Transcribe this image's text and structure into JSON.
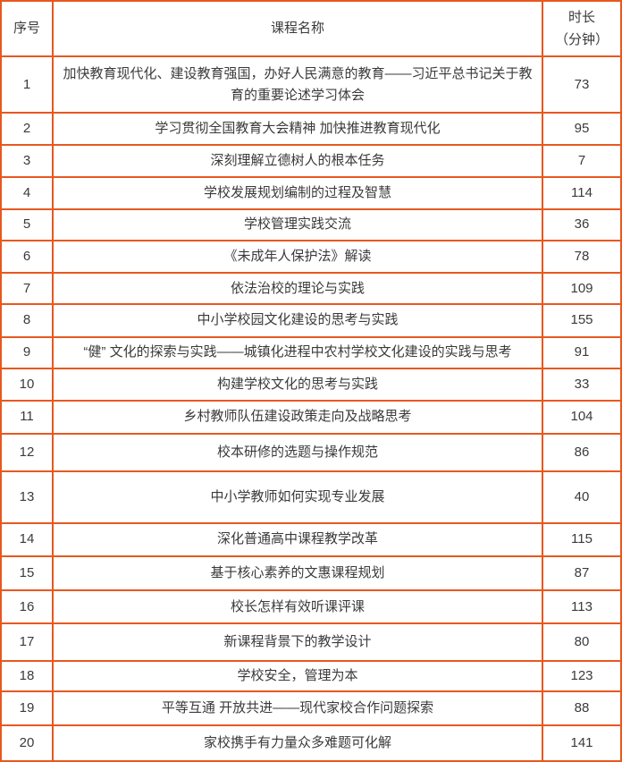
{
  "colors": {
    "border": "#E8581F",
    "text": "#3a3a3a",
    "background": "#ffffff"
  },
  "table": {
    "headers": {
      "no": "序号",
      "name": "课程名称",
      "duration_line1": "时长",
      "duration_line2": "（分钟）"
    },
    "rows": [
      {
        "no": "1",
        "name": "加快教育现代化、建设教育强国，办好人民满意的教育——习近平总书记关于教育的重要论述学习体会",
        "minutes": "73"
      },
      {
        "no": "2",
        "name": "学习贯彻全国教育大会精神 加快推进教育现代化",
        "minutes": "95"
      },
      {
        "no": "3",
        "name": "深刻理解立德树人的根本任务",
        "minutes": "7"
      },
      {
        "no": "4",
        "name": "学校发展规划编制的过程及智慧",
        "minutes": "114"
      },
      {
        "no": "5",
        "name": "学校管理实践交流",
        "minutes": "36"
      },
      {
        "no": "6",
        "name": "《未成年人保护法》解读",
        "minutes": "78"
      },
      {
        "no": "7",
        "name": "依法治校的理论与实践",
        "minutes": "109"
      },
      {
        "no": "8",
        "name": "中小学校园文化建设的思考与实践",
        "minutes": "155"
      },
      {
        "no": "9",
        "name": "“健” 文化的探索与实践——城镇化进程中农村学校文化建设的实践与思考",
        "minutes": "91"
      },
      {
        "no": "10",
        "name": "构建学校文化的思考与实践",
        "minutes": "33"
      },
      {
        "no": "11",
        "name": "乡村教师队伍建设政策走向及战略思考",
        "minutes": "104"
      },
      {
        "no": "12",
        "name": "校本研修的选题与操作规范",
        "minutes": "86"
      },
      {
        "no": "13",
        "name": "中小学教师如何实现专业发展",
        "minutes": "40"
      },
      {
        "no": "14",
        "name": "深化普通高中课程教学改革",
        "minutes": "115"
      },
      {
        "no": "15",
        "name": "基于核心素养的文惠课程规划",
        "minutes": "87"
      },
      {
        "no": "16",
        "name": "校长怎样有效听课评课",
        "minutes": "113"
      },
      {
        "no": "17",
        "name": "新课程背景下的教学设计",
        "minutes": "80"
      },
      {
        "no": "18",
        "name": "学校安全，管理为本",
        "minutes": "123"
      },
      {
        "no": "19",
        "name": "平等互通 开放共进——现代家校合作问题探索",
        "minutes": "88"
      },
      {
        "no": "20",
        "name": "家校携手有力量众多难题可化解",
        "minutes": "141"
      }
    ]
  }
}
